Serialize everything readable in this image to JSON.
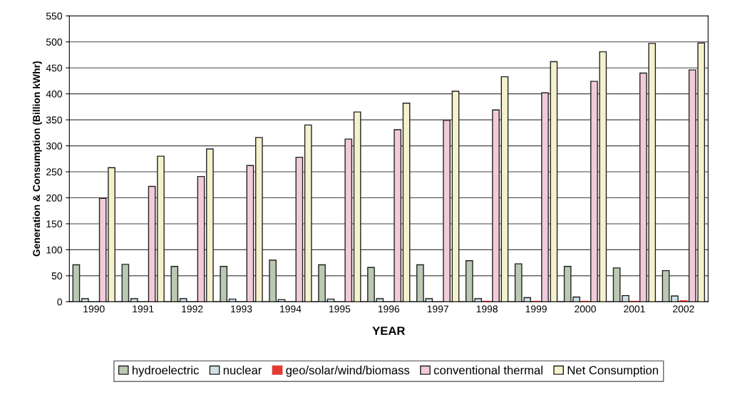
{
  "chart_data": {
    "type": "bar",
    "xlabel": "YEAR",
    "ylabel": "Generation & Consumption (Billion kWhr)",
    "categories": [
      "1990",
      "1991",
      "1992",
      "1993",
      "1994",
      "1995",
      "1996",
      "1997",
      "1998",
      "1999",
      "2000",
      "2001",
      "2002"
    ],
    "series": [
      {
        "name": "hydroelectric",
        "color": "#b9c9b3",
        "values": [
          71,
          72,
          68,
          68,
          80,
          71,
          66,
          71,
          79,
          73,
          68,
          65,
          60
        ]
      },
      {
        "name": "nuclear",
        "color": "#cfe0e3",
        "values": [
          6,
          6,
          6,
          5,
          4,
          5,
          6,
          6,
          6,
          8,
          9,
          12,
          11
        ]
      },
      {
        "name": "geo/solar/wind/biomass",
        "color": "#e23a32",
        "values": [
          null,
          null,
          null,
          null,
          null,
          null,
          null,
          null,
          1,
          1,
          1,
          1,
          2
        ]
      },
      {
        "name": "conventional thermal",
        "color": "#f2cbd9",
        "values": [
          199,
          222,
          241,
          262,
          278,
          313,
          331,
          349,
          369,
          402,
          424,
          440,
          446
        ]
      },
      {
        "name": "Net Consumption",
        "color": "#f5f1cc",
        "values": [
          258,
          280,
          294,
          316,
          340,
          365,
          382,
          405,
          433,
          462,
          481,
          497,
          498
        ]
      }
    ],
    "ylim": [
      0,
      550
    ],
    "yticks": [
      0,
      50,
      100,
      150,
      200,
      250,
      300,
      350,
      400,
      450,
      500,
      550
    ],
    "grid": "y",
    "legend": "bottom"
  }
}
